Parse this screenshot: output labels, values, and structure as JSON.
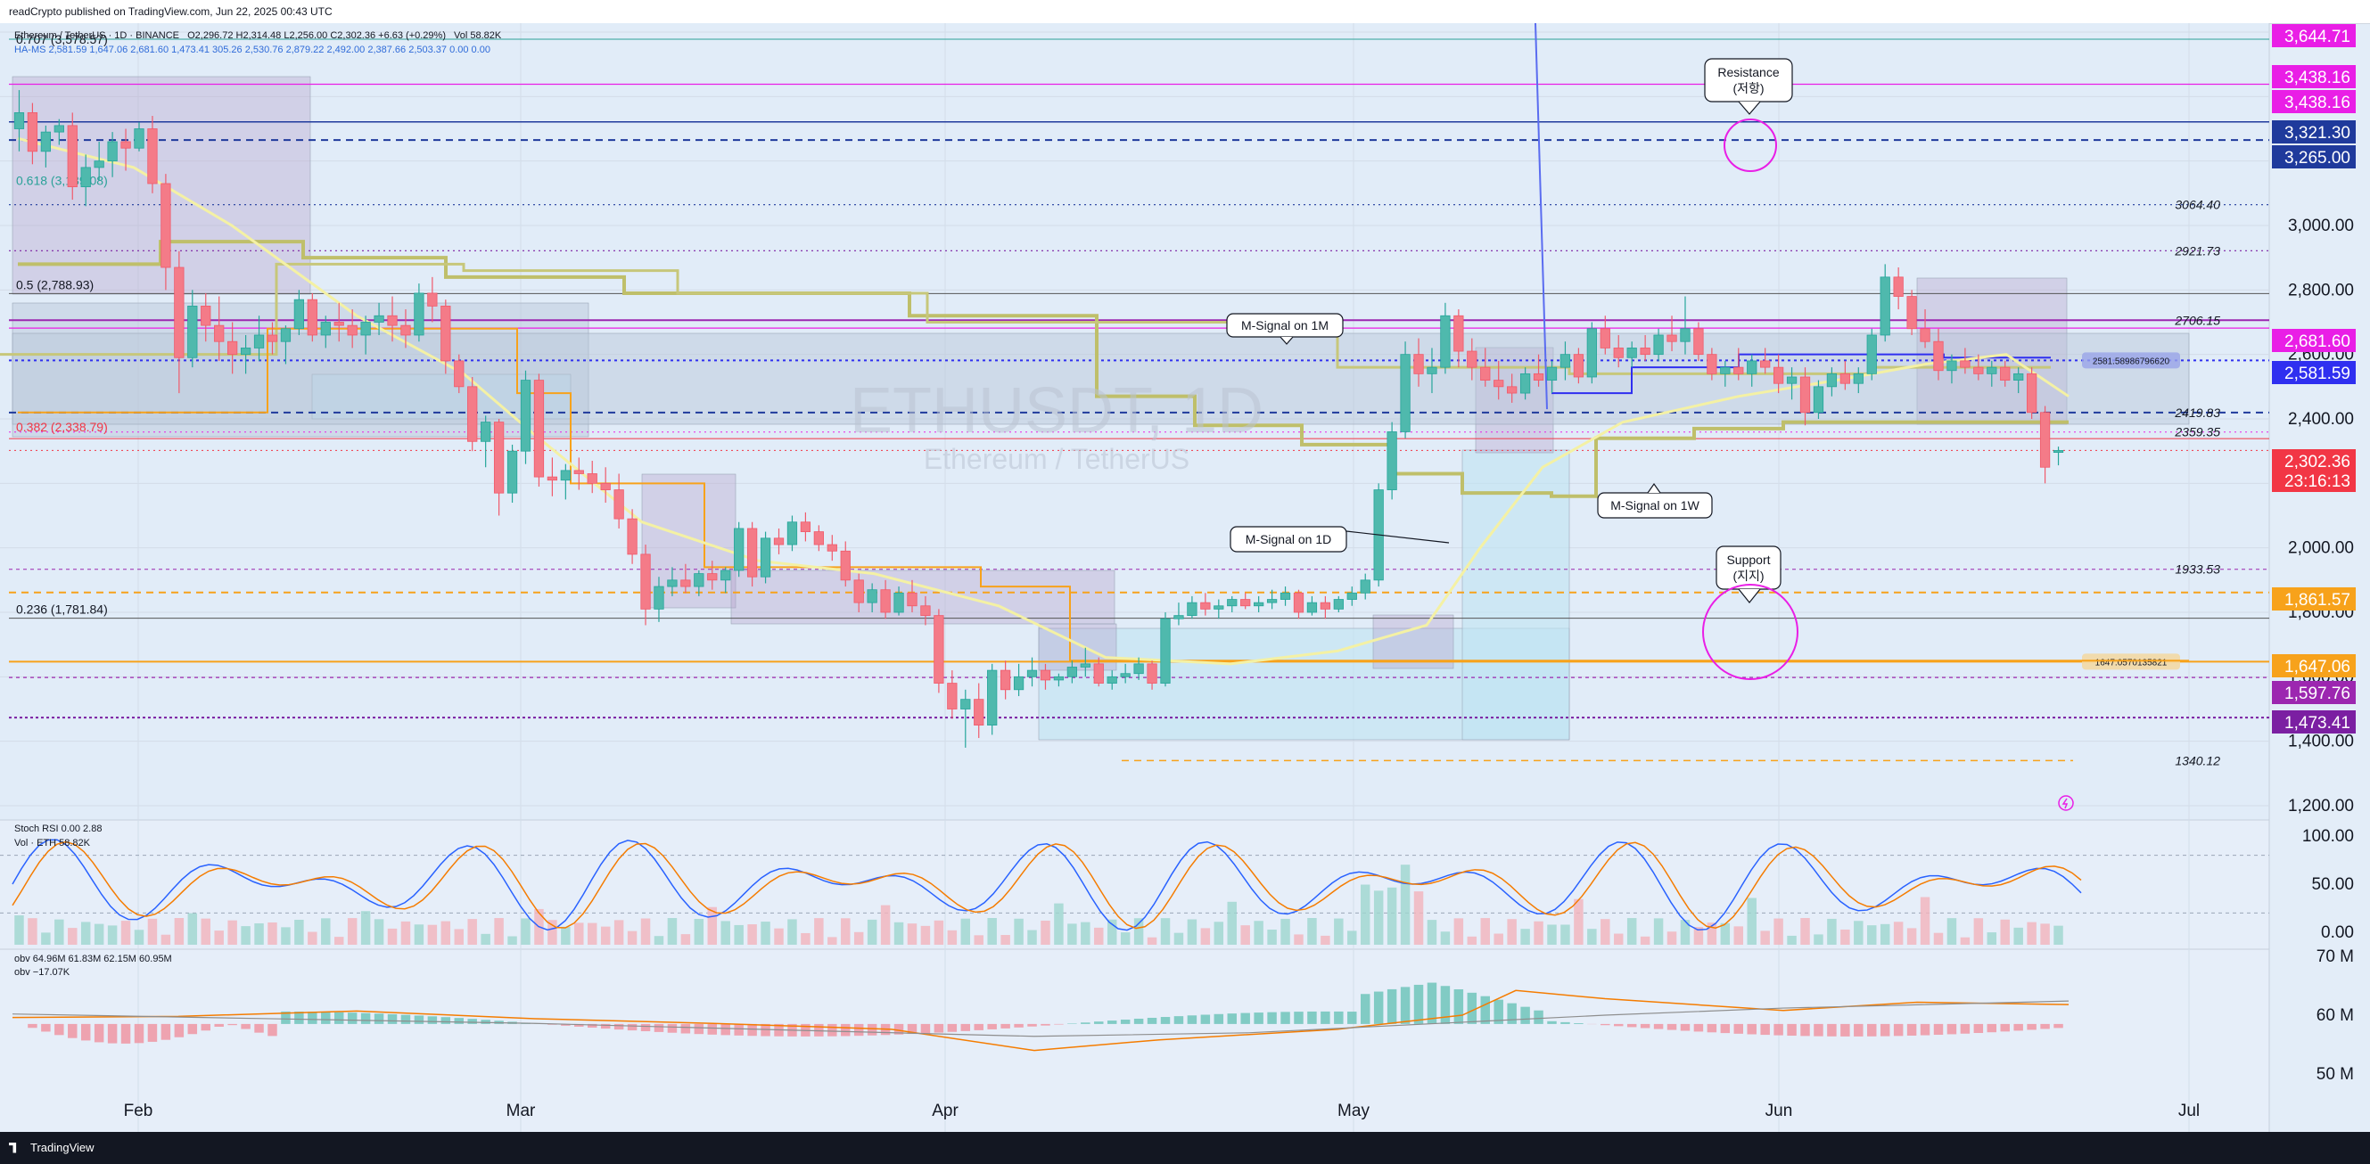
{
  "header": {
    "published": "readCrypto published on TradingView.com, Jun 22, 2025 00:43 UTC"
  },
  "legend": {
    "symbol_line": "Ethereum / TetherUS · 1D · BINANCE",
    "ohlc": "O2,296.72  H2,314.48  L2,256.00  C2,302.36  +6.63 (+0.29%)",
    "volume": "Vol 58.82K",
    "ha_ms": "HA-MS  2,581.59  1,647.06  2,681.60  1,473.41  305.26  2,530.76  2,879.22  2,492.00  2,387.66  2,503.37  0.00  0.00",
    "stoch_rsi": "Stoch RSI  0.00  2.88",
    "vol_eth": "Vol · ETH  58.82K",
    "obv": "obv  64.96M  61.83M  62.15M  60.95M",
    "obv2": "obv  −17.07K"
  },
  "watermark": {
    "symbol": "ETHUSDT, 1D",
    "name": "Ethereum / TetherUS"
  },
  "footer": {
    "brand": "TradingView"
  },
  "annotations": {
    "resistance": "Resistance\n(저항)",
    "support": "Support\n(지지)",
    "m_signal_1m": "M-Signal on 1M",
    "m_signal_1w": "M-Signal on 1W",
    "m_signal_1d": "M-Signal on 1D",
    "fib_0707": "0.707 (3,578.57)",
    "fib_0618": "0.618 (3,139.08)",
    "fib_05": "0.5 (2,788.93)",
    "fib_0382": "0.382 (2,338.79)",
    "fib_0236": "0.236 (1,781.84)",
    "lbl_3064": "3064.40",
    "lbl_2921": "2921.73",
    "lbl_2706": "2706.15",
    "lbl_2419": "2419.83",
    "lbl_2359": "2359.35",
    "lbl_1933": "1933.53",
    "lbl_1340": "1340.12",
    "lbl_2581pill": "2581.58986796620",
    "lbl_1647pill": "1647.0570135821"
  },
  "chart_data": {
    "type": "candlestick",
    "x_axis": {
      "labels": [
        "Feb",
        "Mar",
        "Apr",
        "May",
        "Jun",
        "Jul"
      ],
      "start": "2025-01-16",
      "end": "2025-06-21"
    },
    "y_axis": {
      "ticks": [
        "1,200.00",
        "1,400.00",
        "1,600.00",
        "1,800.00",
        "2,000.00",
        "2,200.00",
        "2,400.00",
        "2,600.00",
        "2,800.00",
        "3,000.00",
        "3,200.00",
        "3,400.00",
        "3,600.00"
      ],
      "range": [
        1200,
        3680
      ]
    },
    "price_badges": [
      {
        "value": "3,644.71",
        "color": "#e91ee6"
      },
      {
        "value": "3,438.16",
        "color": "#e91ee6"
      },
      {
        "value": "3,438.16",
        "color": "#e91ee6"
      },
      {
        "value": "3,321.30",
        "color": "#1f3a9c"
      },
      {
        "value": "3,265.00",
        "color": "#1f3a9c"
      },
      {
        "value": "2,681.60",
        "color": "#e91ee6"
      },
      {
        "value": "2,581.59",
        "color": "#2f2ff0"
      },
      {
        "value": "2,302.36",
        "color": "#f23645"
      },
      {
        "value": "23:16:13",
        "color": "#f23645"
      },
      {
        "value": "1,861.57",
        "color": "#f7a21b"
      },
      {
        "value": "1,647.06",
        "color": "#f7a21b"
      },
      {
        "value": "1,597.76",
        "color": "#9c27b0"
      },
      {
        "value": "1,473.41",
        "color": "#7b1fa2"
      }
    ],
    "candles": [
      [
        3300,
        3420,
        3230,
        3350
      ],
      [
        3350,
        3380,
        3190,
        3230
      ],
      [
        3230,
        3310,
        3180,
        3290
      ],
      [
        3290,
        3330,
        3250,
        3310
      ],
      [
        3310,
        3350,
        3080,
        3120
      ],
      [
        3120,
        3220,
        3060,
        3180
      ],
      [
        3180,
        3260,
        3140,
        3200
      ],
      [
        3200,
        3290,
        3150,
        3260
      ],
      [
        3260,
        3300,
        3170,
        3240
      ],
      [
        3240,
        3320,
        3230,
        3300
      ],
      [
        3300,
        3340,
        3100,
        3130
      ],
      [
        3130,
        3160,
        2800,
        2870
      ],
      [
        2870,
        2920,
        2480,
        2590
      ],
      [
        2590,
        2800,
        2560,
        2750
      ],
      [
        2750,
        2790,
        2640,
        2690
      ],
      [
        2690,
        2780,
        2580,
        2640
      ],
      [
        2640,
        2700,
        2540,
        2600
      ],
      [
        2600,
        2660,
        2540,
        2620
      ],
      [
        2620,
        2720,
        2580,
        2660
      ],
      [
        2660,
        2700,
        2600,
        2640
      ],
      [
        2640,
        2690,
        2570,
        2680
      ],
      [
        2680,
        2800,
        2660,
        2770
      ],
      [
        2770,
        2790,
        2640,
        2660
      ],
      [
        2660,
        2720,
        2620,
        2700
      ],
      [
        2700,
        2760,
        2640,
        2690
      ],
      [
        2690,
        2740,
        2620,
        2660
      ],
      [
        2660,
        2720,
        2600,
        2700
      ],
      [
        2700,
        2760,
        2660,
        2720
      ],
      [
        2720,
        2780,
        2640,
        2690
      ],
      [
        2690,
        2740,
        2620,
        2660
      ],
      [
        2660,
        2820,
        2640,
        2790
      ],
      [
        2790,
        2840,
        2700,
        2750
      ],
      [
        2750,
        2770,
        2540,
        2580
      ],
      [
        2580,
        2600,
        2480,
        2500
      ],
      [
        2500,
        2530,
        2300,
        2330
      ],
      [
        2330,
        2410,
        2250,
        2390
      ],
      [
        2390,
        2400,
        2100,
        2170
      ],
      [
        2170,
        2320,
        2140,
        2300
      ],
      [
        2300,
        2550,
        2260,
        2520
      ],
      [
        2520,
        2540,
        2190,
        2220
      ],
      [
        2220,
        2280,
        2160,
        2210
      ],
      [
        2210,
        2260,
        2150,
        2240
      ],
      [
        2240,
        2280,
        2180,
        2230
      ],
      [
        2230,
        2270,
        2170,
        2200
      ],
      [
        2200,
        2250,
        2140,
        2180
      ],
      [
        2180,
        2230,
        2060,
        2090
      ],
      [
        2090,
        2120,
        1950,
        1980
      ],
      [
        1980,
        2010,
        1760,
        1810
      ],
      [
        1810,
        1910,
        1770,
        1880
      ],
      [
        1880,
        1940,
        1850,
        1900
      ],
      [
        1900,
        1950,
        1860,
        1880
      ],
      [
        1880,
        1930,
        1850,
        1920
      ],
      [
        1920,
        1960,
        1870,
        1900
      ],
      [
        1900,
        1940,
        1860,
        1930
      ],
      [
        1930,
        2080,
        1910,
        2060
      ],
      [
        2060,
        2080,
        1880,
        1910
      ],
      [
        1910,
        2050,
        1890,
        2030
      ],
      [
        2030,
        2060,
        1980,
        2010
      ],
      [
        2010,
        2100,
        1990,
        2080
      ],
      [
        2080,
        2110,
        2020,
        2050
      ],
      [
        2050,
        2070,
        1990,
        2010
      ],
      [
        2010,
        2040,
        1960,
        1990
      ],
      [
        1990,
        2020,
        1880,
        1900
      ],
      [
        1900,
        1920,
        1800,
        1830
      ],
      [
        1830,
        1890,
        1800,
        1870
      ],
      [
        1870,
        1900,
        1780,
        1800
      ],
      [
        1800,
        1880,
        1790,
        1860
      ],
      [
        1860,
        1900,
        1800,
        1820
      ],
      [
        1820,
        1850,
        1760,
        1790
      ],
      [
        1790,
        1810,
        1550,
        1580
      ],
      [
        1580,
        1620,
        1470,
        1500
      ],
      [
        1500,
        1560,
        1380,
        1530
      ],
      [
        1530,
        1580,
        1410,
        1450
      ],
      [
        1450,
        1640,
        1420,
        1620
      ],
      [
        1620,
        1650,
        1530,
        1560
      ],
      [
        1560,
        1640,
        1540,
        1600
      ],
      [
        1600,
        1660,
        1570,
        1620
      ],
      [
        1620,
        1640,
        1560,
        1590
      ],
      [
        1590,
        1610,
        1570,
        1600
      ],
      [
        1600,
        1650,
        1580,
        1630
      ],
      [
        1630,
        1690,
        1600,
        1640
      ],
      [
        1640,
        1660,
        1570,
        1580
      ],
      [
        1580,
        1620,
        1560,
        1600
      ],
      [
        1600,
        1640,
        1580,
        1610
      ],
      [
        1610,
        1660,
        1590,
        1640
      ],
      [
        1640,
        1650,
        1560,
        1580
      ],
      [
        1580,
        1800,
        1570,
        1780
      ],
      [
        1780,
        1830,
        1760,
        1790
      ],
      [
        1790,
        1850,
        1780,
        1830
      ],
      [
        1830,
        1860,
        1790,
        1810
      ],
      [
        1810,
        1840,
        1780,
        1820
      ],
      [
        1820,
        1850,
        1800,
        1840
      ],
      [
        1840,
        1860,
        1810,
        1820
      ],
      [
        1820,
        1850,
        1800,
        1830
      ],
      [
        1830,
        1870,
        1810,
        1840
      ],
      [
        1840,
        1880,
        1820,
        1860
      ],
      [
        1860,
        1870,
        1780,
        1800
      ],
      [
        1800,
        1850,
        1790,
        1830
      ],
      [
        1830,
        1850,
        1780,
        1810
      ],
      [
        1810,
        1850,
        1800,
        1840
      ],
      [
        1840,
        1880,
        1820,
        1860
      ],
      [
        1860,
        1920,
        1840,
        1900
      ],
      [
        1900,
        2200,
        1880,
        2180
      ],
      [
        2180,
        2390,
        2150,
        2360
      ],
      [
        2360,
        2640,
        2340,
        2600
      ],
      [
        2600,
        2650,
        2500,
        2540
      ],
      [
        2540,
        2620,
        2480,
        2560
      ],
      [
        2560,
        2760,
        2540,
        2720
      ],
      [
        2720,
        2740,
        2560,
        2610
      ],
      [
        2610,
        2650,
        2520,
        2560
      ],
      [
        2560,
        2620,
        2500,
        2520
      ],
      [
        2520,
        2580,
        2460,
        2500
      ],
      [
        2500,
        2540,
        2450,
        2480
      ],
      [
        2480,
        2560,
        2460,
        2540
      ],
      [
        2540,
        2600,
        2500,
        2520
      ],
      [
        2520,
        2580,
        2480,
        2560
      ],
      [
        2560,
        2640,
        2520,
        2600
      ],
      [
        2600,
        2620,
        2510,
        2530
      ],
      [
        2530,
        2700,
        2510,
        2680
      ],
      [
        2680,
        2720,
        2600,
        2620
      ],
      [
        2620,
        2660,
        2560,
        2590
      ],
      [
        2590,
        2640,
        2560,
        2620
      ],
      [
        2620,
        2660,
        2580,
        2600
      ],
      [
        2600,
        2680,
        2580,
        2660
      ],
      [
        2660,
        2720,
        2610,
        2640
      ],
      [
        2640,
        2780,
        2600,
        2680
      ],
      [
        2680,
        2700,
        2580,
        2600
      ],
      [
        2600,
        2620,
        2520,
        2540
      ],
      [
        2540,
        2580,
        2500,
        2560
      ],
      [
        2560,
        2620,
        2520,
        2540
      ],
      [
        2540,
        2600,
        2500,
        2580
      ],
      [
        2580,
        2620,
        2540,
        2560
      ],
      [
        2560,
        2600,
        2480,
        2510
      ],
      [
        2510,
        2560,
        2460,
        2530
      ],
      [
        2530,
        2560,
        2380,
        2420
      ],
      [
        2420,
        2520,
        2400,
        2500
      ],
      [
        2500,
        2560,
        2470,
        2540
      ],
      [
        2540,
        2580,
        2490,
        2510
      ],
      [
        2510,
        2560,
        2480,
        2540
      ],
      [
        2540,
        2680,
        2520,
        2660
      ],
      [
        2660,
        2880,
        2640,
        2840
      ],
      [
        2840,
        2870,
        2740,
        2780
      ],
      [
        2780,
        2800,
        2660,
        2680
      ],
      [
        2680,
        2740,
        2620,
        2640
      ],
      [
        2640,
        2680,
        2520,
        2550
      ],
      [
        2550,
        2600,
        2510,
        2580
      ],
      [
        2580,
        2620,
        2540,
        2560
      ],
      [
        2560,
        2600,
        2520,
        2540
      ],
      [
        2540,
        2580,
        2500,
        2560
      ],
      [
        2560,
        2580,
        2500,
        2520
      ],
      [
        2520,
        2560,
        2480,
        2540
      ],
      [
        2540,
        2560,
        2400,
        2420
      ],
      [
        2420,
        2440,
        2200,
        2250
      ],
      [
        2296,
        2314,
        2256,
        2302
      ]
    ]
  }
}
